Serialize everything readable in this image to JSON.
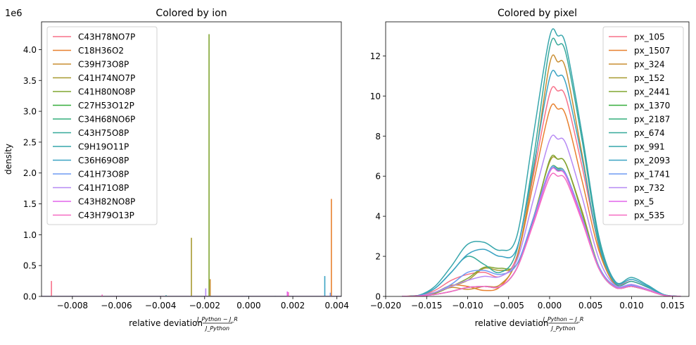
{
  "chart_data": [
    {
      "type": "histogram",
      "title": "Colored by ion",
      "xlabel": "relative deviation",
      "xlabel_fraction": {
        "numerator": "J_Python − J_R",
        "denominator": "J_Python"
      },
      "ylabel": "density",
      "y_offset_label": "1e6",
      "xlim": [
        -0.0094,
        0.0042
      ],
      "ylim": [
        0,
        4.45
      ],
      "xticks": [
        -0.008,
        -0.006,
        -0.004,
        -0.002,
        0.0,
        0.002,
        0.004
      ],
      "xtick_labels": [
        "−0.008",
        "−0.006",
        "−0.004",
        "−0.002",
        "0.000",
        "0.002",
        "0.004"
      ],
      "yticks": [
        0.0,
        0.5,
        1.0,
        1.5,
        2.0,
        2.5,
        3.0,
        3.5,
        4.0
      ],
      "ytick_labels": [
        "0.0",
        "0.5",
        "1.0",
        "1.5",
        "2.0",
        "2.5",
        "3.0",
        "3.5",
        "4.0"
      ],
      "legend_position": "top-left",
      "grid": false,
      "series": [
        {
          "name": "C43H78NO7P",
          "color": "#f77189",
          "bars": [
            [
              -0.00895,
              0.25
            ]
          ]
        },
        {
          "name": "C18H36O2",
          "color": "#e8802e",
          "bars": [
            [
              0.00375,
              1.58
            ]
          ]
        },
        {
          "name": "C39H73O8P",
          "color": "#c98d31",
          "bars": [
            [
              -0.00175,
              0.28
            ]
          ]
        },
        {
          "name": "C41H74NO7P",
          "color": "#a89a31",
          "bars": [
            [
              -0.0026,
              0.95
            ]
          ]
        },
        {
          "name": "C41H80NO8P",
          "color": "#80a531",
          "bars": [
            [
              -0.0018,
              4.25
            ]
          ]
        },
        {
          "name": "C27H53O12P",
          "color": "#36ad3a",
          "bars": [
            [
              -0.0017,
              0.01
            ],
            [
              0.0,
              0.01
            ],
            [
              0.0012,
              0.01
            ]
          ]
        },
        {
          "name": "C34H68NO6P",
          "color": "#34ad7c",
          "bars": [
            [
              -0.0003,
              0.01
            ]
          ]
        },
        {
          "name": "C43H75O8P",
          "color": "#36a99a",
          "bars": [
            [
              -0.00375,
              0.02
            ]
          ]
        },
        {
          "name": "C9H19O11P",
          "color": "#37a6ac",
          "bars": [
            [
              -0.0001,
              0.01
            ]
          ]
        },
        {
          "name": "C36H69O8P",
          "color": "#3ba3c3",
          "bars": [
            [
              0.00345,
              0.33
            ]
          ]
        },
        {
          "name": "C41H73O8P",
          "color": "#6e9bf4",
          "bars": [
            [
              0.0037,
              0.06
            ]
          ]
        },
        {
          "name": "C41H71O8P",
          "color": "#b689f4",
          "bars": [
            [
              -0.00195,
              0.13
            ]
          ]
        },
        {
          "name": "C43H82NO8P",
          "color": "#e265ec",
          "bars": [
            [
              0.00175,
              0.08
            ]
          ]
        },
        {
          "name": "C43H79O13P",
          "color": "#f66cc2",
          "bars": [
            [
              -0.00665,
              0.03
            ],
            [
              0.0018,
              0.07
            ]
          ]
        }
      ]
    },
    {
      "type": "line",
      "title": "Colored by pixel",
      "xlabel": "relative deviation",
      "xlabel_fraction": {
        "numerator": "J_Python − J_R",
        "denominator": "J_Python"
      },
      "ylabel": "",
      "xlim": [
        -0.02,
        0.017
      ],
      "ylim": [
        0,
        13.7
      ],
      "xticks": [
        -0.02,
        -0.015,
        -0.01,
        -0.005,
        0.0,
        0.005,
        0.01,
        0.015
      ],
      "xtick_labels": [
        "−0.020",
        "−0.015",
        "−0.010",
        "−0.005",
        "0.000",
        "0.005",
        "0.010",
        "0.015"
      ],
      "yticks": [
        0,
        2,
        4,
        6,
        8,
        10,
        12
      ],
      "ytick_labels": [
        "0",
        "2",
        "4",
        "6",
        "8",
        "10",
        "12"
      ],
      "legend_position": "top-right",
      "grid": false,
      "x": [
        -0.018,
        -0.016,
        -0.014,
        -0.012,
        -0.01,
        -0.008,
        -0.006,
        -0.004,
        -0.002,
        0.0,
        0.001,
        0.002,
        0.004,
        0.006,
        0.008,
        0.01,
        0.012,
        0.014,
        0.016
      ],
      "series": [
        {
          "name": "px_105",
          "color": "#f77189",
          "values": [
            0,
            0.05,
            0.3,
            0.8,
            1.1,
            1.2,
            1.0,
            2.0,
            6.0,
            10.1,
            10.25,
            9.9,
            6.4,
            2.6,
            0.7,
            0.75,
            0.45,
            0.08,
            0
          ]
        },
        {
          "name": "px_1507",
          "color": "#e8802e",
          "values": [
            0,
            0.05,
            0.2,
            0.55,
            0.5,
            0.3,
            0.5,
            1.9,
            5.6,
            9.3,
            9.35,
            9.0,
            5.7,
            2.3,
            0.6,
            0.5,
            0.35,
            0.05,
            0
          ]
        },
        {
          "name": "px_324",
          "color": "#c98d31",
          "values": [
            0,
            0.03,
            0.2,
            0.45,
            0.35,
            0.5,
            0.6,
            1.9,
            6.2,
            11.6,
            11.7,
            11.3,
            7.0,
            2.5,
            0.55,
            0.5,
            0.3,
            0.05,
            0
          ]
        },
        {
          "name": "px_152",
          "color": "#a89a31",
          "values": [
            0,
            0.05,
            0.2,
            0.5,
            0.8,
            1.4,
            1.3,
            1.6,
            3.9,
            6.7,
            6.85,
            6.6,
            4.2,
            1.5,
            0.5,
            0.5,
            0.35,
            0.05,
            0
          ]
        },
        {
          "name": "px_2441",
          "color": "#80a531",
          "values": [
            0,
            0.03,
            0.15,
            0.5,
            0.9,
            1.45,
            1.4,
            1.6,
            3.8,
            6.8,
            6.85,
            6.6,
            4.1,
            1.5,
            0.5,
            0.5,
            0.3,
            0.05,
            0
          ]
        },
        {
          "name": "px_1370",
          "color": "#36ad3a",
          "values": [
            0,
            0.02,
            0.1,
            0.25,
            0.45,
            0.5,
            0.5,
            1.4,
            3.8,
            6.3,
            6.4,
            6.1,
            3.9,
            1.4,
            0.45,
            0.5,
            0.3,
            0.05,
            0
          ]
        },
        {
          "name": "px_2187",
          "color": "#34ad7c",
          "values": [
            0,
            0.02,
            0.1,
            0.25,
            0.45,
            0.5,
            0.5,
            1.4,
            3.7,
            6.2,
            6.3,
            6.0,
            3.8,
            1.4,
            0.45,
            0.5,
            0.3,
            0.05,
            0
          ]
        },
        {
          "name": "px_674",
          "color": "#36a99a",
          "values": [
            0,
            0.05,
            0.4,
            1.2,
            2.0,
            1.6,
            1.2,
            2.3,
            6.8,
            12.4,
            12.55,
            12.1,
            7.7,
            2.8,
            0.65,
            0.75,
            0.45,
            0.08,
            0
          ]
        },
        {
          "name": "px_991",
          "color": "#37a6ac",
          "values": [
            0,
            0.05,
            0.5,
            1.5,
            2.6,
            2.7,
            2.3,
            3.0,
            8.0,
            12.95,
            13.0,
            12.5,
            8.0,
            3.0,
            0.75,
            0.95,
            0.55,
            0.08,
            0
          ]
        },
        {
          "name": "px_2093",
          "color": "#3ba3c3",
          "values": [
            0,
            0.05,
            0.4,
            1.2,
            2.1,
            2.35,
            2.0,
            2.4,
            6.4,
            10.9,
            11.0,
            10.6,
            6.8,
            2.6,
            0.7,
            0.85,
            0.5,
            0.08,
            0
          ]
        },
        {
          "name": "px_1741",
          "color": "#6e9bf4",
          "values": [
            0,
            0.03,
            0.2,
            0.6,
            1.2,
            1.3,
            1.1,
            1.6,
            3.9,
            6.3,
            6.35,
            6.1,
            3.9,
            1.5,
            0.5,
            0.55,
            0.35,
            0.05,
            0
          ]
        },
        {
          "name": "px_732",
          "color": "#b689f4",
          "values": [
            0,
            0.03,
            0.2,
            0.5,
            0.8,
            1.0,
            1.0,
            1.8,
            4.8,
            7.8,
            7.85,
            7.6,
            4.9,
            1.9,
            0.55,
            0.6,
            0.35,
            0.05,
            0
          ]
        },
        {
          "name": "px_5",
          "color": "#e265ec",
          "values": [
            0,
            0.02,
            0.1,
            0.25,
            0.45,
            0.5,
            0.5,
            1.4,
            3.7,
            6.2,
            6.25,
            6.0,
            3.8,
            1.4,
            0.45,
            0.5,
            0.3,
            0.05,
            0
          ]
        },
        {
          "name": "px_535",
          "color": "#f66cc2",
          "values": [
            0,
            0.02,
            0.1,
            0.25,
            0.45,
            0.5,
            0.5,
            1.4,
            3.6,
            5.95,
            6.0,
            5.8,
            3.7,
            1.4,
            0.45,
            0.5,
            0.3,
            0.05,
            0
          ]
        }
      ]
    }
  ]
}
